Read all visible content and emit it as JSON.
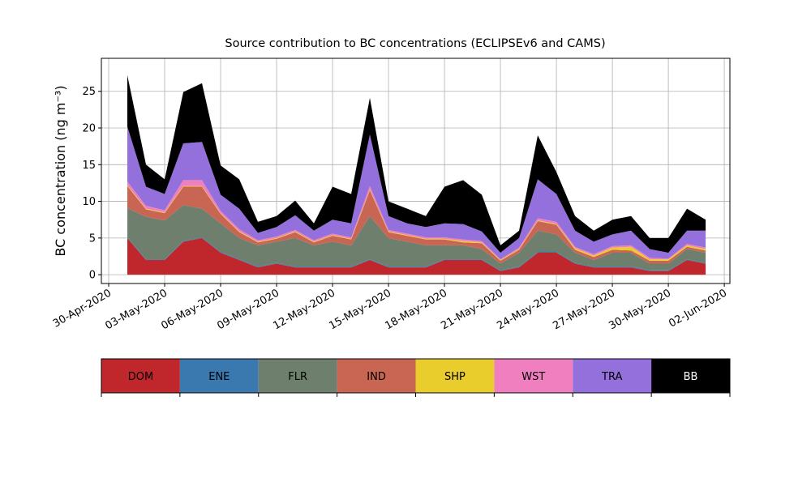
{
  "chart_data": {
    "type": "stacked-area",
    "title": "Source contribution to BC concentrations (ECLIPSEv6 and CAMS)",
    "y_label": "BC concentration (ng m⁻³)",
    "x": [
      "2020-05-01",
      "2020-05-02",
      "2020-05-03",
      "2020-05-04",
      "2020-05-05",
      "2020-05-06",
      "2020-05-07",
      "2020-05-08",
      "2020-05-09",
      "2020-05-10",
      "2020-05-11",
      "2020-05-12",
      "2020-05-13",
      "2020-05-14",
      "2020-05-15",
      "2020-05-16",
      "2020-05-17",
      "2020-05-18",
      "2020-05-19",
      "2020-05-20",
      "2020-05-21",
      "2020-05-22",
      "2020-05-23",
      "2020-05-24",
      "2020-05-25",
      "2020-05-26",
      "2020-05-27",
      "2020-05-28",
      "2020-05-29",
      "2020-05-30",
      "2020-05-31",
      "2020-06-01"
    ],
    "series": [
      {
        "name": "DOM",
        "color": "#c0272d",
        "text_color": "#000000",
        "values": [
          5,
          2,
          2,
          4.5,
          5,
          3,
          2,
          1,
          1.5,
          1,
          1,
          1,
          1,
          2,
          1,
          1,
          1,
          2,
          2,
          2,
          0.5,
          1,
          3,
          3,
          1.5,
          1,
          1,
          1,
          0.5,
          0.5,
          2,
          1.5
        ]
      },
      {
        "name": "ENE",
        "color": "#3a78b0",
        "text_color": "#000000",
        "values": [
          0.1,
          0.1,
          0.1,
          0.1,
          0.1,
          0.1,
          0.1,
          0.1,
          0.1,
          0.1,
          0.1,
          0.1,
          0.1,
          0.1,
          0.1,
          0.1,
          0.1,
          0.1,
          0.1,
          0.1,
          0.1,
          0.1,
          0.1,
          0.1,
          0.1,
          0.1,
          0.1,
          0.1,
          0.1,
          0.1,
          0.1,
          0.1
        ]
      },
      {
        "name": "FLR",
        "color": "#6e7f6e",
        "text_color": "#000000",
        "values": [
          4,
          5.8,
          5.3,
          4.9,
          3.9,
          3.9,
          2.9,
          2.9,
          2.9,
          3.9,
          2.9,
          3.4,
          2.9,
          5.9,
          3.9,
          3.4,
          2.9,
          1.9,
          1.9,
          1.4,
          0.9,
          1.9,
          2.9,
          2.4,
          1.4,
          0.9,
          1.9,
          1.9,
          0.9,
          0.9,
          1.4,
          1.4
        ]
      },
      {
        "name": "IND",
        "color": "#c86553",
        "text_color": "#000000",
        "values": [
          3,
          1,
          1,
          2.5,
          3,
          1.3,
          0.8,
          0.4,
          0.4,
          0.8,
          0.4,
          0.8,
          0.8,
          3.5,
          0.8,
          0.8,
          0.8,
          0.8,
          0.4,
          0.8,
          0.4,
          0.4,
          1.3,
          1.3,
          0.4,
          0.4,
          0.4,
          0.3,
          0.4,
          0.4,
          0.3,
          0.3
        ]
      },
      {
        "name": "SHP",
        "color": "#e8cd2c",
        "text_color": "#000000",
        "values": [
          0.1,
          0.1,
          0.1,
          0.1,
          0.1,
          0.1,
          0.1,
          0.1,
          0.1,
          0.1,
          0.1,
          0.1,
          0.1,
          0.1,
          0.1,
          0.1,
          0.1,
          0.1,
          0.2,
          0.1,
          0.1,
          0.1,
          0.1,
          0.1,
          0.2,
          0.2,
          0.3,
          0.5,
          0.2,
          0.2,
          0.2,
          0.2
        ]
      },
      {
        "name": "WST",
        "color": "#f07fbf",
        "text_color": "#000000",
        "values": [
          0.5,
          0.4,
          0.3,
          0.8,
          0.8,
          0.3,
          0.3,
          0.2,
          0.2,
          0.2,
          0.2,
          0.2,
          0.2,
          0.5,
          0.2,
          0.2,
          0.2,
          0.2,
          0.2,
          0.2,
          0.1,
          0.2,
          0.3,
          0.3,
          0.2,
          0.2,
          0.2,
          0.2,
          0.2,
          0.1,
          0.2,
          0.2
        ]
      },
      {
        "name": "TRA",
        "color": "#9370db",
        "text_color": "#000000",
        "values": [
          7.5,
          2.6,
          2.2,
          5,
          5.2,
          2.2,
          2.8,
          1,
          1.3,
          2,
          1.3,
          1.9,
          1.9,
          7,
          1.9,
          1.4,
          1.4,
          1.9,
          2.1,
          1.3,
          0.9,
          1.3,
          5.3,
          3.8,
          2.2,
          1.7,
          1.6,
          2,
          1.2,
          0.8,
          1.8,
          2.3
        ]
      },
      {
        "name": "BB",
        "color": "#000000",
        "text_color": "#ffffff",
        "values": [
          7,
          3,
          2,
          7,
          8,
          4,
          4,
          1.5,
          1.5,
          2,
          1,
          4.5,
          4,
          5,
          2,
          2,
          1.5,
          5,
          6,
          5,
          1,
          1,
          6,
          3,
          2,
          1.5,
          2,
          2,
          1.5,
          2,
          3,
          1.5
        ]
      }
    ],
    "xlim": [
      "2020-04-29T14:36",
      "2020-06-02T07:12"
    ],
    "xticks": [
      {
        "value": "2020-04-30",
        "label": "30-Apr-2020"
      },
      {
        "value": "2020-05-03",
        "label": "03-May-2020"
      },
      {
        "value": "2020-05-06",
        "label": "06-May-2020"
      },
      {
        "value": "2020-05-09",
        "label": "09-May-2020"
      },
      {
        "value": "2020-05-12",
        "label": "12-May-2020"
      },
      {
        "value": "2020-05-15",
        "label": "15-May-2020"
      },
      {
        "value": "2020-05-18",
        "label": "18-May-2020"
      },
      {
        "value": "2020-05-21",
        "label": "21-May-2020"
      },
      {
        "value": "2020-05-24",
        "label": "24-May-2020"
      },
      {
        "value": "2020-05-27",
        "label": "27-May-2020"
      },
      {
        "value": "2020-05-30",
        "label": "30-May-2020"
      },
      {
        "value": "2020-06-02",
        "label": "02-Jun-2020"
      }
    ],
    "ylim": [
      -1.2,
      29.5
    ],
    "yticks": [
      0,
      5,
      10,
      15,
      20,
      25
    ],
    "grid": true
  }
}
